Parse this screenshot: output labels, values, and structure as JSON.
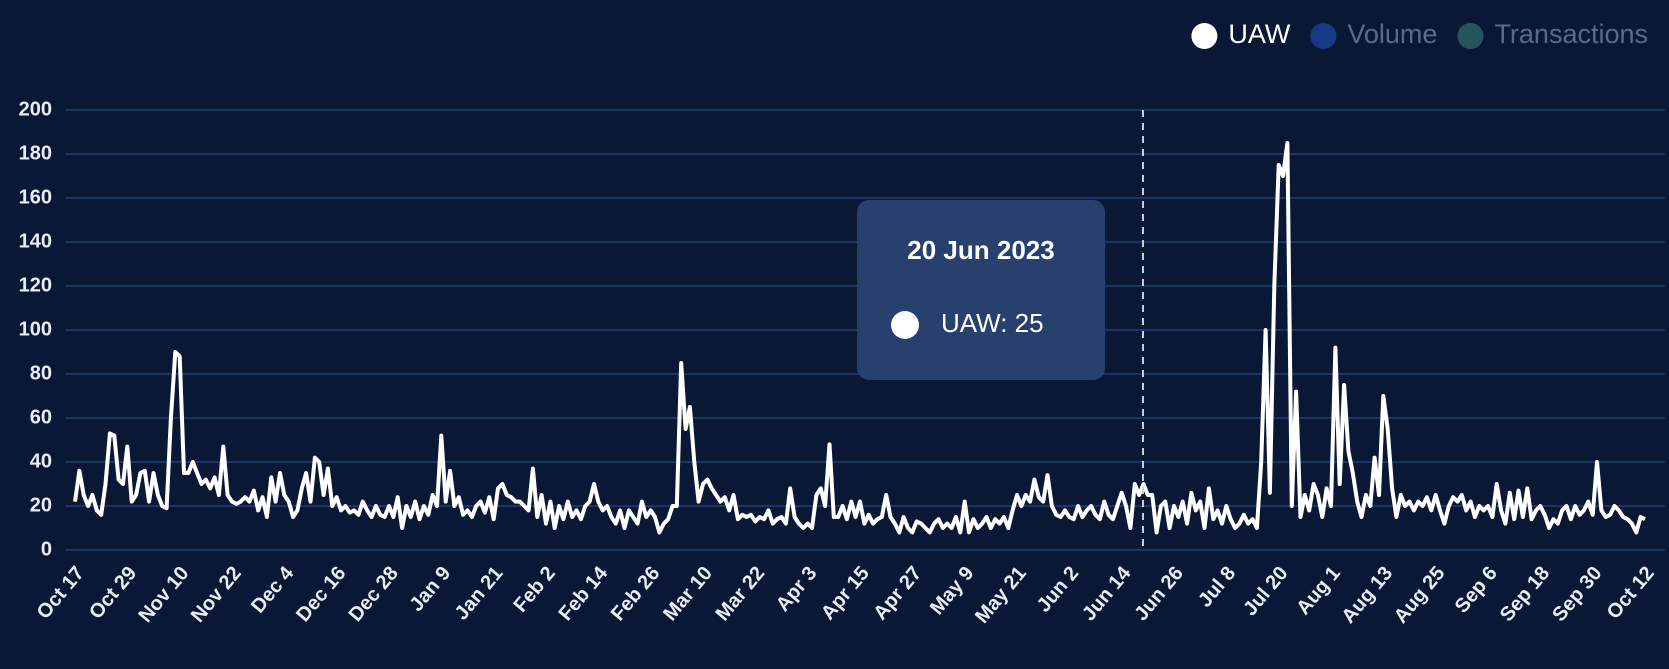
{
  "chart_data": {
    "type": "line",
    "legend": [
      {
        "name": "UAW",
        "color": "#ffffff"
      },
      {
        "name": "Volume",
        "color": "#173a84"
      },
      {
        "name": "Transactions",
        "color": "#25565f"
      }
    ],
    "categories": [
      "Oct 17",
      null,
      null,
      null,
      null,
      null,
      null,
      null,
      null,
      null,
      null,
      null,
      "Oct 29",
      null,
      null,
      null,
      null,
      null,
      null,
      null,
      null,
      null,
      null,
      null,
      "Nov 10",
      null,
      null,
      null,
      null,
      null,
      null,
      null,
      null,
      null,
      null,
      null,
      "Nov 22",
      null,
      null,
      null,
      null,
      null,
      null,
      null,
      null,
      null,
      null,
      null,
      "Dec 4",
      null,
      null,
      null,
      null,
      null,
      null,
      null,
      null,
      null,
      null,
      null,
      "Dec 16",
      null,
      null,
      null,
      null,
      null,
      null,
      null,
      null,
      null,
      null,
      null,
      "Dec 28",
      null,
      null,
      null,
      null,
      null,
      null,
      null,
      null,
      null,
      null,
      null,
      "Jan 9",
      null,
      null,
      null,
      null,
      null,
      null,
      null,
      null,
      null,
      null,
      null,
      "Jan 21",
      null,
      null,
      null,
      null,
      null,
      null,
      null,
      null,
      null,
      null,
      null,
      "Feb 2",
      null,
      null,
      null,
      null,
      null,
      null,
      null,
      null,
      null,
      null,
      null,
      "Feb 14",
      null,
      null,
      null,
      null,
      null,
      null,
      null,
      null,
      null,
      null,
      null,
      "Feb 26",
      null,
      null,
      null,
      null,
      null,
      null,
      null,
      null,
      null,
      null,
      null,
      "Mar 10",
      null,
      null,
      null,
      null,
      null,
      null,
      null,
      null,
      null,
      null,
      null,
      "Mar 22",
      null,
      null,
      null,
      null,
      null,
      null,
      null,
      null,
      null,
      null,
      null,
      "Apr 3",
      null,
      null,
      null,
      null,
      null,
      null,
      null,
      null,
      null,
      null,
      null,
      "Apr 15",
      null,
      null,
      null,
      null,
      null,
      null,
      null,
      null,
      null,
      null,
      null,
      "Apr 27",
      null,
      null,
      null,
      null,
      null,
      null,
      null,
      null,
      null,
      null,
      null,
      "May 9",
      null,
      null,
      null,
      null,
      null,
      null,
      null,
      null,
      null,
      null,
      null,
      "May 21",
      null,
      null,
      null,
      null,
      null,
      null,
      null,
      null,
      null,
      null,
      null,
      "Jun 2",
      null,
      null,
      null,
      null,
      null,
      null,
      null,
      null,
      null,
      null,
      null,
      "Jun 14",
      null,
      null,
      null,
      null,
      null,
      null,
      null,
      null,
      null,
      null,
      null,
      "Jun 26",
      null,
      null,
      null,
      null,
      null,
      null,
      null,
      null,
      null,
      null,
      null,
      "Jul 8",
      null,
      null,
      null,
      null,
      null,
      null,
      null,
      null,
      null,
      null,
      null,
      "Jul 20",
      null,
      null,
      null,
      null,
      null,
      null,
      null,
      null,
      null,
      null,
      null,
      "Aug 1",
      null,
      null,
      null,
      null,
      null,
      null,
      null,
      null,
      null,
      null,
      null,
      "Aug 13",
      null,
      null,
      null,
      null,
      null,
      null,
      null,
      null,
      null,
      null,
      null,
      "Aug 25",
      null,
      null,
      null,
      null,
      null,
      null,
      null,
      null,
      null,
      null,
      null,
      "Sep 6",
      null,
      null,
      null,
      null,
      null,
      null,
      null,
      null,
      null,
      null,
      null,
      "Sep 18",
      null,
      null,
      null,
      null,
      null,
      null,
      null,
      null,
      null,
      null,
      null,
      "Sep 30",
      null,
      null,
      null,
      null,
      null,
      null,
      null,
      null,
      null,
      null,
      null,
      "Oct 12"
    ],
    "series": [
      {
        "name": "UAW",
        "color": "#ffffff",
        "values": [
          22,
          36,
          25,
          20,
          25,
          18,
          16,
          30,
          53,
          52,
          32,
          30,
          47,
          22,
          25,
          35,
          36,
          22,
          35,
          25,
          20,
          19,
          60,
          90,
          88,
          35,
          35,
          40,
          35,
          30,
          32,
          28,
          33,
          25,
          47,
          25,
          22,
          21,
          22,
          24,
          22,
          27,
          18,
          24,
          15,
          33,
          22,
          35,
          25,
          22,
          15,
          18,
          28,
          35,
          22,
          42,
          40,
          25,
          37,
          20,
          24,
          18,
          20,
          17,
          18,
          16,
          22,
          18,
          15,
          20,
          16,
          15,
          20,
          15,
          24,
          10,
          20,
          15,
          22,
          14,
          20,
          16,
          25,
          20,
          52,
          22,
          36,
          20,
          24,
          16,
          18,
          15,
          20,
          22,
          17,
          24,
          14,
          28,
          30,
          25,
          24,
          22,
          22,
          20,
          18,
          37,
          15,
          25,
          12,
          22,
          10,
          20,
          14,
          22,
          15,
          18,
          14,
          20,
          22,
          30,
          22,
          18,
          20,
          15,
          12,
          18,
          10,
          18,
          15,
          12,
          22,
          15,
          18,
          15,
          8,
          12,
          14,
          20,
          20,
          85,
          55,
          65,
          40,
          22,
          30,
          32,
          28,
          25,
          22,
          24,
          18,
          25,
          14,
          16,
          15,
          16,
          13,
          15,
          14,
          18,
          12,
          14,
          15,
          12,
          28,
          15,
          12,
          10,
          12,
          10,
          25,
          28,
          20,
          48,
          15,
          15,
          20,
          14,
          22,
          15,
          22,
          12,
          16,
          12,
          14,
          15,
          25,
          15,
          12,
          8,
          15,
          10,
          8,
          13,
          12,
          10,
          8,
          12,
          14,
          10,
          12,
          10,
          15,
          8,
          22,
          8,
          14,
          10,
          12,
          15,
          10,
          14,
          12,
          15,
          10,
          18,
          25,
          20,
          25,
          22,
          32,
          24,
          22,
          34,
          20,
          16,
          15,
          18,
          15,
          14,
          20,
          15,
          18,
          20,
          16,
          14,
          22,
          16,
          14,
          20,
          26,
          20,
          10,
          30,
          25,
          30,
          25,
          25,
          8,
          20,
          22,
          10,
          20,
          15,
          22,
          12,
          26,
          18,
          22,
          10,
          28,
          14,
          18,
          12,
          20,
          14,
          10,
          12,
          16,
          12,
          14,
          10,
          40,
          100,
          26,
          120,
          175,
          170,
          185,
          20,
          72,
          15,
          25,
          18,
          30,
          25,
          15,
          28,
          20,
          92,
          30,
          75,
          45,
          35,
          22,
          15,
          25,
          20,
          42,
          25,
          70,
          55,
          28,
          15,
          25,
          20,
          22,
          18,
          22,
          20,
          24,
          18,
          25,
          18,
          12,
          20,
          24,
          22,
          25,
          18,
          22,
          15,
          20,
          18,
          20,
          15,
          30,
          18,
          12,
          26,
          14,
          27,
          15,
          28,
          14,
          18,
          20,
          16,
          10,
          14,
          12,
          18,
          20,
          14,
          20,
          16,
          18,
          22,
          16,
          40,
          18,
          15,
          16,
          20,
          18,
          15,
          14,
          12,
          8,
          15,
          14
        ]
      }
    ],
    "ylim": [
      0,
      200
    ],
    "yticks": [
      0,
      20,
      40,
      60,
      80,
      100,
      120,
      140,
      160,
      180,
      200
    ],
    "grid": true,
    "legend_position": "top-right",
    "tooltip": {
      "title": "20 Jun 2023",
      "text": "UAW: 25"
    }
  }
}
